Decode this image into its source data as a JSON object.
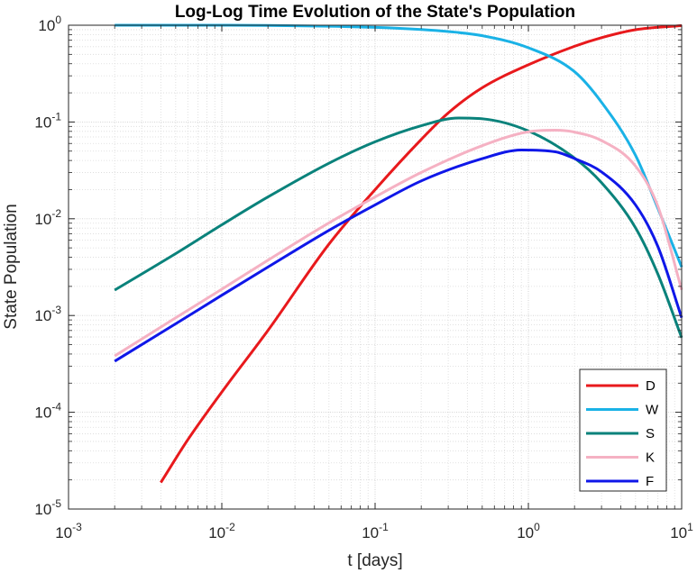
{
  "chart_data": {
    "type": "line",
    "title": "Log-Log Time Evolution of the State's Population",
    "xlabel": "t [days]",
    "ylabel": "State Population",
    "xscale": "log",
    "yscale": "log",
    "xlim": [
      0.001,
      10
    ],
    "ylim": [
      1e-05,
      1
    ],
    "grid": true,
    "minor_grid": true,
    "legend_position": "bottom-right",
    "x_ticks": [
      {
        "base": "10",
        "exp": "-3",
        "value": 0.001
      },
      {
        "base": "10",
        "exp": "-2",
        "value": 0.01
      },
      {
        "base": "10",
        "exp": "-1",
        "value": 0.1
      },
      {
        "base": "10",
        "exp": "0",
        "value": 1
      },
      {
        "base": "10",
        "exp": "1",
        "value": 10
      }
    ],
    "y_ticks": [
      {
        "base": "10",
        "exp": "-5",
        "value": 1e-05
      },
      {
        "base": "10",
        "exp": "-4",
        "value": 0.0001
      },
      {
        "base": "10",
        "exp": "-3",
        "value": 0.001
      },
      {
        "base": "10",
        "exp": "-2",
        "value": 0.01
      },
      {
        "base": "10",
        "exp": "-1",
        "value": 0.1
      },
      {
        "base": "10",
        "exp": "0",
        "value": 1
      }
    ],
    "series": [
      {
        "name": "D",
        "color": "#e8191c",
        "points": [
          [
            0.004,
            1.88e-05
          ],
          [
            0.006,
            5.2e-05
          ],
          [
            0.01,
            0.000162
          ],
          [
            0.02,
            0.000701
          ],
          [
            0.05,
            0.00547
          ],
          [
            0.1,
            0.02
          ],
          [
            0.2,
            0.066
          ],
          [
            0.3,
            0.124
          ],
          [
            0.5,
            0.226
          ],
          [
            1,
            0.39
          ],
          [
            2,
            0.606
          ],
          [
            3,
            0.744
          ],
          [
            5,
            0.899
          ],
          [
            10,
            0.993
          ]
        ]
      },
      {
        "name": "W",
        "color": "#1ab2e6",
        "points": [
          [
            0.002,
            1
          ],
          [
            0.01,
            1
          ],
          [
            0.02,
            0.994
          ],
          [
            0.05,
            0.976
          ],
          [
            0.1,
            0.951
          ],
          [
            0.2,
            0.904
          ],
          [
            0.3,
            0.861
          ],
          [
            0.5,
            0.779
          ],
          [
            1,
            0.585
          ],
          [
            2,
            0.331
          ],
          [
            3,
            0.16
          ],
          [
            5,
            0.0452
          ],
          [
            7,
            0.0128
          ],
          [
            10,
            0.00317
          ]
        ]
      },
      {
        "name": "S",
        "color": "#0a827b",
        "points": [
          [
            0.002,
            0.00183
          ],
          [
            0.005,
            0.00436
          ],
          [
            0.01,
            0.00866
          ],
          [
            0.02,
            0.0168
          ],
          [
            0.05,
            0.0375
          ],
          [
            0.1,
            0.0624
          ],
          [
            0.2,
            0.0914
          ],
          [
            0.35,
            0.11
          ],
          [
            0.5,
            0.108
          ],
          [
            1,
            0.0808
          ],
          [
            2,
            0.0424
          ],
          [
            3,
            0.0236
          ],
          [
            5,
            0.00806
          ],
          [
            7,
            0.00267
          ],
          [
            10,
            0.00059
          ]
        ]
      },
      {
        "name": "K",
        "color": "#f5b1c3",
        "points": [
          [
            0.002,
            0.000382
          ],
          [
            0.005,
            0.000946
          ],
          [
            0.01,
            0.00187
          ],
          [
            0.02,
            0.00373
          ],
          [
            0.05,
            0.00906
          ],
          [
            0.1,
            0.0168
          ],
          [
            0.2,
            0.0301
          ],
          [
            0.5,
            0.0569
          ],
          [
            1,
            0.0792
          ],
          [
            1.5,
            0.0822
          ],
          [
            2,
            0.0786
          ],
          [
            3,
            0.0643
          ],
          [
            5,
            0.035
          ],
          [
            7,
            0.0134
          ],
          [
            10,
            0.00184
          ]
        ]
      },
      {
        "name": "F",
        "color": "#0f17e8",
        "points": [
          [
            0.002,
            0.000337
          ],
          [
            0.005,
            0.000821
          ],
          [
            0.01,
            0.00162
          ],
          [
            0.02,
            0.00317
          ],
          [
            0.05,
            0.00759
          ],
          [
            0.1,
            0.0139
          ],
          [
            0.2,
            0.0246
          ],
          [
            0.5,
            0.0418
          ],
          [
            0.9,
            0.0514
          ],
          [
            1.5,
            0.0492
          ],
          [
            2,
            0.0419
          ],
          [
            3,
            0.0305
          ],
          [
            5,
            0.0139
          ],
          [
            7,
            0.00515
          ],
          [
            10,
            0.00095
          ]
        ]
      }
    ]
  }
}
